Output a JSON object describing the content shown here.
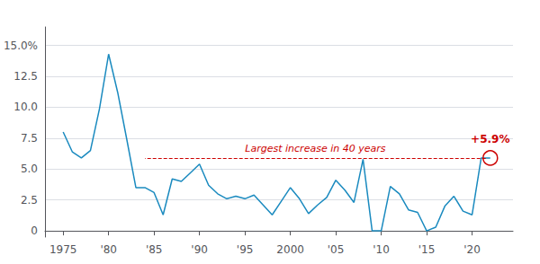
{
  "chart_data": {
    "type": "line",
    "x": [
      1975,
      1976,
      1977,
      1978,
      1979,
      1980,
      1981,
      1982,
      1983,
      1984,
      1985,
      1986,
      1987,
      1988,
      1989,
      1990,
      1991,
      1992,
      1993,
      1994,
      1995,
      1996,
      1997,
      1998,
      1999,
      2000,
      2001,
      2002,
      2003,
      2004,
      2005,
      2006,
      2007,
      2008,
      2009,
      2010,
      2011,
      2012,
      2013,
      2014,
      2015,
      2016,
      2017,
      2018,
      2019,
      2020,
      2021,
      2022
    ],
    "values": [
      8.0,
      6.4,
      5.9,
      6.5,
      9.9,
      14.3,
      11.2,
      7.4,
      3.5,
      3.5,
      3.1,
      1.3,
      4.2,
      4.0,
      4.7,
      5.4,
      3.7,
      3.0,
      2.6,
      2.8,
      2.6,
      2.9,
      2.1,
      1.3,
      2.4,
      3.5,
      2.6,
      1.4,
      2.1,
      2.7,
      4.1,
      3.3,
      2.3,
      5.8,
      0.0,
      0.0,
      3.6,
      3.0,
      1.7,
      1.5,
      0.0,
      0.3,
      2.0,
      2.8,
      1.6,
      1.3,
      5.9,
      5.9
    ],
    "color": "#1a8abf",
    "xlim": [
      1973,
      2024.5
    ],
    "xticks": [
      1975,
      {
        "value": 1980,
        "label": "'80"
      },
      {
        "value": 1985,
        "label": "'85"
      },
      {
        "value": 1990,
        "label": "'90"
      },
      {
        "value": 1995,
        "label": "'95"
      },
      2000,
      {
        "value": 2005,
        "label": "'05"
      },
      {
        "value": 2010,
        "label": "'10"
      },
      {
        "value": 2015,
        "label": "'15"
      },
      {
        "value": 2020,
        "label": "'20"
      }
    ],
    "ylim": [
      -0.5,
      16.5
    ],
    "yticks": [
      0,
      2.5,
      {
        "value": 5.0,
        "label": "5.0"
      },
      7.5,
      {
        "value": 10.0,
        "label": "10.0"
      },
      12.5,
      {
        "value": 15.0,
        "label": "15.0%"
      }
    ],
    "grid": true,
    "annotations": [
      {
        "text": "Largest increase in 40 years",
        "color": "#cc0000",
        "from": [
          2021.5,
          5.9
        ],
        "to": [
          1984,
          5.9
        ]
      },
      {
        "text": "+5.9%",
        "color": "#cc0000",
        "x": 2022,
        "y": 5.9,
        "marker": "circle"
      }
    ]
  }
}
